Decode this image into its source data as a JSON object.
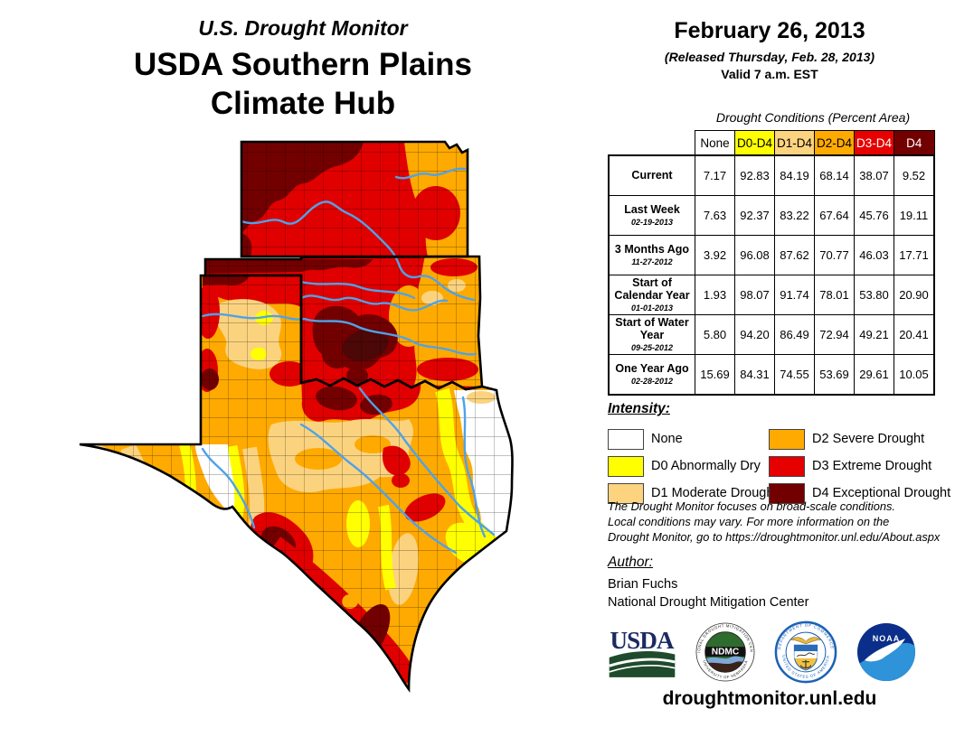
{
  "header": {
    "kicker": "U.S. Drought Monitor",
    "title_line1": "USDA Southern Plains",
    "title_line2": "Climate Hub"
  },
  "date_block": {
    "date": "February 26, 2013",
    "released": "(Released Thursday, Feb. 28, 2013)",
    "valid": "Valid 7 a.m. EST"
  },
  "table": {
    "caption": "Drought Conditions (Percent Area)",
    "columns": [
      {
        "label": "None",
        "bg": "#FFFFFF",
        "fg": "#000000"
      },
      {
        "label": "D0-D4",
        "bg": "#FFFF00",
        "fg": "#000000"
      },
      {
        "label": "D1-D4",
        "bg": "#FCD37F",
        "fg": "#000000"
      },
      {
        "label": "D2-D4",
        "bg": "#FFAA00",
        "fg": "#000000"
      },
      {
        "label": "D3-D4",
        "bg": "#E60000",
        "fg": "#FFFFFF"
      },
      {
        "label": "D4",
        "bg": "#730000",
        "fg": "#FFFFFF"
      }
    ],
    "rows": [
      {
        "label": "Current",
        "date": "",
        "values": [
          "7.17",
          "92.83",
          "84.19",
          "68.14",
          "38.07",
          "9.52"
        ]
      },
      {
        "label": "Last Week",
        "date": "02-19-2013",
        "values": [
          "7.63",
          "92.37",
          "83.22",
          "67.64",
          "45.76",
          "19.11"
        ]
      },
      {
        "label": "3 Months Ago",
        "date": "11-27-2012",
        "values": [
          "3.92",
          "96.08",
          "87.62",
          "70.77",
          "46.03",
          "17.71"
        ]
      },
      {
        "label": "Start of Calendar Year",
        "date": "01-01-2013",
        "values": [
          "1.93",
          "98.07",
          "91.74",
          "78.01",
          "53.80",
          "20.90"
        ]
      },
      {
        "label": "Start of Water Year",
        "date": "09-25-2012",
        "values": [
          "5.80",
          "94.20",
          "86.49",
          "72.94",
          "49.21",
          "20.41"
        ]
      },
      {
        "label": "One Year Ago",
        "date": "02-28-2012",
        "values": [
          "15.69",
          "84.31",
          "74.55",
          "53.69",
          "29.61",
          "10.05"
        ]
      }
    ]
  },
  "legend": {
    "heading": "Intensity:",
    "items": [
      {
        "label": "None",
        "color": "#FFFFFF"
      },
      {
        "label": "D0 Abnormally Dry",
        "color": "#FFFF00"
      },
      {
        "label": "D1 Moderate Drought",
        "color": "#FCD37F"
      },
      {
        "label": "D2 Severe Drought",
        "color": "#FFAA00"
      },
      {
        "label": "D3 Extreme Drought",
        "color": "#E60000"
      },
      {
        "label": "D4 Exceptional Drought",
        "color": "#730000"
      }
    ]
  },
  "disclaimer": {
    "lines": [
      "The Drought Monitor focuses on broad-scale conditions.",
      "Local conditions may vary. For more information on the",
      "Drought Monitor, go to https://droughtmonitor.unl.edu/About.aspx"
    ]
  },
  "author": {
    "heading": "Author:",
    "name": "Brian Fuchs",
    "org": "National Drought Mitigation Center"
  },
  "logos": {
    "usda_text": "USDA",
    "ndmc_text": "NDMC",
    "ndmc_ring_top": "NATIONAL DROUGHT MITIGATION CENTER",
    "ndmc_ring_bottom": "UNIVERSITY OF NEBRASKA",
    "doc_ring_top": "DEPARTMENT OF COMMERCE",
    "doc_ring_bottom": "UNITED STATES OF AMERICA",
    "noaa_text": "NOAA"
  },
  "footer": {
    "url": "droughtmonitor.unl.edu"
  },
  "map": {
    "states": [
      "Kansas",
      "Oklahoma",
      "Texas"
    ],
    "palette": {
      "none": "#FFFFFF",
      "d0": "#FFFF00",
      "d1": "#FBD37F",
      "d2": "#FFAA00",
      "d3": "#E10000",
      "d4": "#730000",
      "d4core": "#4C0707",
      "river": "#4FA2E8",
      "border": "#000000"
    }
  }
}
